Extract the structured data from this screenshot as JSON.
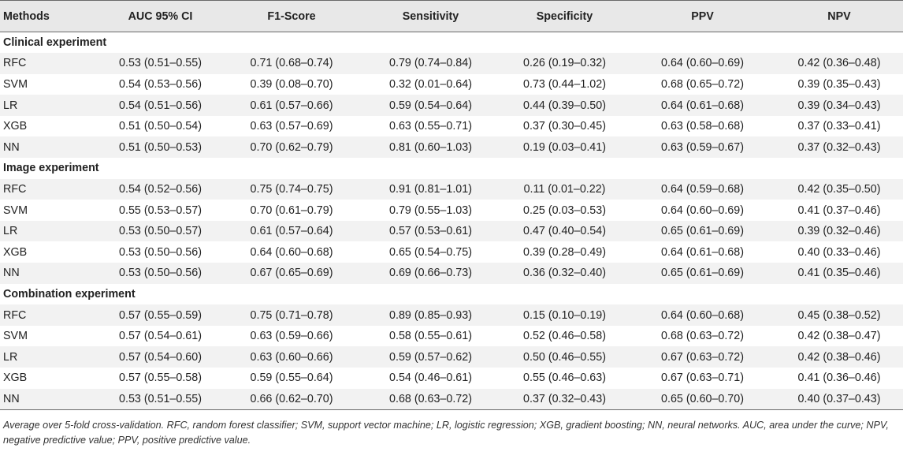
{
  "header": [
    "Methods",
    "AUC 95% CI",
    "F1-Score",
    "Sensitivity",
    "Specificity",
    "PPV",
    "NPV"
  ],
  "sections": [
    {
      "title": "Clinical experiment",
      "rows": [
        [
          "RFC",
          "0.53 (0.51–0.55)",
          "0.71 (0.68–0.74)",
          "0.79 (0.74–0.84)",
          "0.26 (0.19–0.32)",
          "0.64 (0.60–0.69)",
          "0.42 (0.36–0.48)"
        ],
        [
          "SVM",
          "0.54 (0.53–0.56)",
          "0.39 (0.08–0.70)",
          "0.32 (0.01–0.64)",
          "0.73 (0.44–1.02)",
          "0.68 (0.65–0.72)",
          "0.39 (0.35–0.43)"
        ],
        [
          "LR",
          "0.54 (0.51–0.56)",
          "0.61 (0.57–0.66)",
          "0.59 (0.54–0.64)",
          "0.44 (0.39–0.50)",
          "0.64 (0.61–0.68)",
          "0.39 (0.34–0.43)"
        ],
        [
          "XGB",
          "0.51 (0.50–0.54)",
          "0.63 (0.57–0.69)",
          "0.63 (0.55–0.71)",
          "0.37 (0.30–0.45)",
          "0.63 (0.58–0.68)",
          "0.37 (0.33–0.41)"
        ],
        [
          "NN",
          "0.51 (0.50–0.53)",
          "0.70 (0.62–0.79)",
          "0.81 (0.60–1.03)",
          "0.19 (0.03–0.41)",
          "0.63 (0.59–0.67)",
          "0.37 (0.32–0.43)"
        ]
      ]
    },
    {
      "title": "Image experiment",
      "rows": [
        [
          "RFC",
          "0.54 (0.52–0.56)",
          "0.75 (0.74–0.75)",
          "0.91 (0.81–1.01)",
          "0.11 (0.01–0.22)",
          "0.64 (0.59–0.68)",
          "0.42 (0.35–0.50)"
        ],
        [
          "SVM",
          "0.55 (0.53–0.57)",
          "0.70 (0.61–0.79)",
          "0.79 (0.55–1.03)",
          "0.25 (0.03–0.53)",
          "0.64 (0.60–0.69)",
          "0.41 (0.37–0.46)"
        ],
        [
          "LR",
          "0.53 (0.50–0.57)",
          "0.61 (0.57–0.64)",
          "0.57 (0.53–0.61)",
          "0.47 (0.40–0.54)",
          "0.65 (0.61–0.69)",
          "0.39 (0.32–0.46)"
        ],
        [
          "XGB",
          "0.53 (0.50–0.56)",
          "0.64 (0.60–0.68)",
          "0.65 (0.54–0.75)",
          "0.39 (0.28–0.49)",
          "0.64 (0.61–0.68)",
          "0.40 (0.33–0.46)"
        ],
        [
          "NN",
          "0.53 (0.50–0.56)",
          "0.67 (0.65–0.69)",
          "0.69 (0.66–0.73)",
          "0.36 (0.32–0.40)",
          "0.65 (0.61–0.69)",
          "0.41 (0.35–0.46)"
        ]
      ]
    },
    {
      "title": "Combination experiment",
      "rows": [
        [
          "RFC",
          "0.57 (0.55–0.59)",
          "0.75 (0.71–0.78)",
          "0.89 (0.85–0.93)",
          "0.15 (0.10–0.19)",
          "0.64 (0.60–0.68)",
          "0.45 (0.38–0.52)"
        ],
        [
          "SVM",
          "0.57 (0.54–0.61)",
          "0.63 (0.59–0.66)",
          "0.58 (0.55–0.61)",
          "0.52 (0.46–0.58)",
          "0.68 (0.63–0.72)",
          "0.42 (0.38–0.47)"
        ],
        [
          "LR",
          "0.57 (0.54–0.60)",
          "0.63 (0.60–0.66)",
          "0.59 (0.57–0.62)",
          "0.50 (0.46–0.55)",
          "0.67 (0.63–0.72)",
          "0.42 (0.38–0.46)"
        ],
        [
          "XGB",
          "0.57 (0.55–0.58)",
          "0.59 (0.55–0.64)",
          "0.54 (0.46–0.61)",
          "0.55 (0.46–0.63)",
          "0.67 (0.63–0.71)",
          "0.41 (0.36–0.46)"
        ],
        [
          "NN",
          "0.53 (0.51–0.55)",
          "0.66 (0.62–0.70)",
          "0.68 (0.63–0.72)",
          "0.37 (0.32–0.43)",
          "0.65 (0.60–0.70)",
          "0.40 (0.37–0.43)"
        ]
      ]
    }
  ],
  "footnote": "Average over 5-fold cross-validation. RFC, random forest classifier; SVM, support vector machine; LR, logistic regression; XGB, gradient boosting; NN, neural networks. AUC, area under the curve; NPV, negative predictive value; PPV, positive predictive value."
}
